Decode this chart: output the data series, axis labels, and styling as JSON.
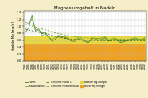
{
  "title": "Magnesiumgehalt in Nadeln",
  "ylabel": "Nadeln Mg [mg/g]",
  "ylim": [
    0.0,
    1.45
  ],
  "yticks": [
    0.0,
    0.2,
    0.4,
    0.6,
    0.8,
    1.0,
    1.2,
    1.4
  ],
  "acute_deficiency_max": 0.5,
  "latent_deficiency_max": 0.7,
  "acute_color": "#F0A020",
  "latent_color": "#E8D840",
  "bg_color": "#F5EEC8",
  "plot_bg": "#FFFFFF",
  "years": [
    1984,
    1985,
    1986,
    1987,
    1988,
    1989,
    1990,
    1991,
    1992,
    1993,
    1994,
    1995,
    1996,
    1997,
    1998,
    1999,
    2000,
    2001,
    2002,
    2003,
    2004,
    2005,
    2006,
    2007,
    2008,
    2009,
    2010,
    2011,
    2012,
    2013,
    2014,
    2015,
    2016,
    2017,
    2018,
    2019,
    2020
  ],
  "line1": [
    0.82,
    0.95,
    1.32,
    0.88,
    0.92,
    0.78,
    0.82,
    0.7,
    0.58,
    0.62,
    0.72,
    0.7,
    0.68,
    0.62,
    0.57,
    0.57,
    0.64,
    0.6,
    0.57,
    0.52,
    0.67,
    0.64,
    0.6,
    0.62,
    0.67,
    0.57,
    0.6,
    0.64,
    0.57,
    0.52,
    0.57,
    0.6,
    0.62,
    0.64,
    0.62,
    0.6,
    0.64
  ],
  "line2": [
    1.12,
    1.08,
    1.22,
    0.92,
    0.87,
    0.74,
    0.77,
    0.68,
    0.62,
    0.67,
    0.74,
    0.72,
    0.7,
    0.64,
    0.6,
    0.62,
    0.67,
    0.64,
    0.6,
    0.54,
    0.62,
    0.67,
    0.64,
    0.67,
    0.7,
    0.6,
    0.64,
    0.67,
    0.6,
    0.54,
    0.57,
    0.62,
    0.64,
    0.67,
    0.64,
    0.62,
    0.67
  ],
  "trend1": [
    0.92,
    0.89,
    0.87,
    0.85,
    0.83,
    0.81,
    0.79,
    0.77,
    0.73,
    0.71,
    0.69,
    0.67,
    0.65,
    0.64,
    0.63,
    0.62,
    0.61,
    0.61,
    0.6,
    0.6,
    0.59,
    0.59,
    0.59,
    0.59,
    0.59,
    0.58,
    0.58,
    0.58,
    0.58,
    0.58,
    0.58,
    0.58,
    0.58,
    0.58,
    0.58,
    0.58,
    0.58
  ],
  "trend2": [
    1.06,
    1.04,
    1.01,
    0.98,
    0.95,
    0.92,
    0.9,
    0.87,
    0.84,
    0.81,
    0.79,
    0.77,
    0.75,
    0.73,
    0.71,
    0.7,
    0.69,
    0.68,
    0.67,
    0.66,
    0.66,
    0.65,
    0.65,
    0.64,
    0.64,
    0.64,
    0.63,
    0.63,
    0.63,
    0.63,
    0.63,
    0.63,
    0.63,
    0.63,
    0.63,
    0.63,
    0.63
  ],
  "line_color1": "#3a7020",
  "line_color2": "#78a830",
  "trend_color1": "#3a7020",
  "trend_color2": "#78a830",
  "legend_labels": [
    "Punkt 1",
    "Pflanzenwinkl",
    "Trendlinie Punkt 1",
    "Trendlinie Pflanzenwinkl",
    "latenter Mg-Mangel",
    "akuter Mg-Mangel"
  ]
}
